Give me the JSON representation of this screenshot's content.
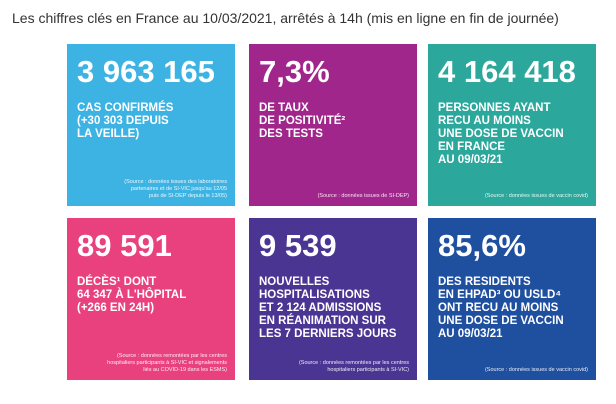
{
  "header": {
    "title": "Les chiffres clés en France au 10/03/2021, arrêtés à 14h (mis en ligne en fin de journée)"
  },
  "tiles": [
    {
      "number": "3 963 165",
      "lines": [
        "CAS CONFIRMÉS",
        "(+30 303 DEPUIS",
        "LA VEILLE)"
      ],
      "source": [
        "(Source : données issues des laboratoires",
        "partenaires et de SI-VIC jusqu'au 12/05",
        "puis de SI-DEP depuis le 13/05)"
      ]
    },
    {
      "number": "7,3%",
      "lines": [
        "DE TAUX",
        "DE POSITIVITÉ²",
        "DES TESTS"
      ],
      "source": [
        "(Source : données issues de SI-DEP)"
      ]
    },
    {
      "number": "4 164 418",
      "lines": [
        "PERSONNES AYANT",
        "RECU AU MOINS",
        "UNE DOSE DE VACCIN",
        "EN FRANCE",
        "AU 09/03/21"
      ],
      "source": [
        "(Source : données issues de vaccin covid)"
      ]
    },
    {
      "number": "89 591",
      "lines": [
        "DÉCÈS¹ DONT",
        "64 347 À L'HÔPITAL",
        "(+266 EN 24H)"
      ],
      "source": [
        "(Source : données remontées par les centres",
        "hospitaliers participants à SI-VIC et signalements",
        "liés au COVID-19 dans les ESMS)"
      ]
    },
    {
      "number": "9 539",
      "lines": [
        "NOUVELLES",
        "HOSPITALISATIONS",
        "ET 2 124 ADMISSIONS",
        "EN RÉANIMATION SUR",
        "LES 7 DERNIERS JOURS"
      ],
      "source": [
        "(Source : données remontées par les centres",
        "hospitaliers participants à SI-VIC)"
      ]
    },
    {
      "number": "85,6%",
      "lines": [
        "DES RESIDENTS",
        "EN EHPAD³ OU USLD⁴",
        "ONT RECU AU MOINS",
        "UNE DOSE DE VACCIN",
        "AU 09/03/21"
      ],
      "source": [
        "(Source : données issues de vaccin covid)"
      ]
    }
  ]
}
